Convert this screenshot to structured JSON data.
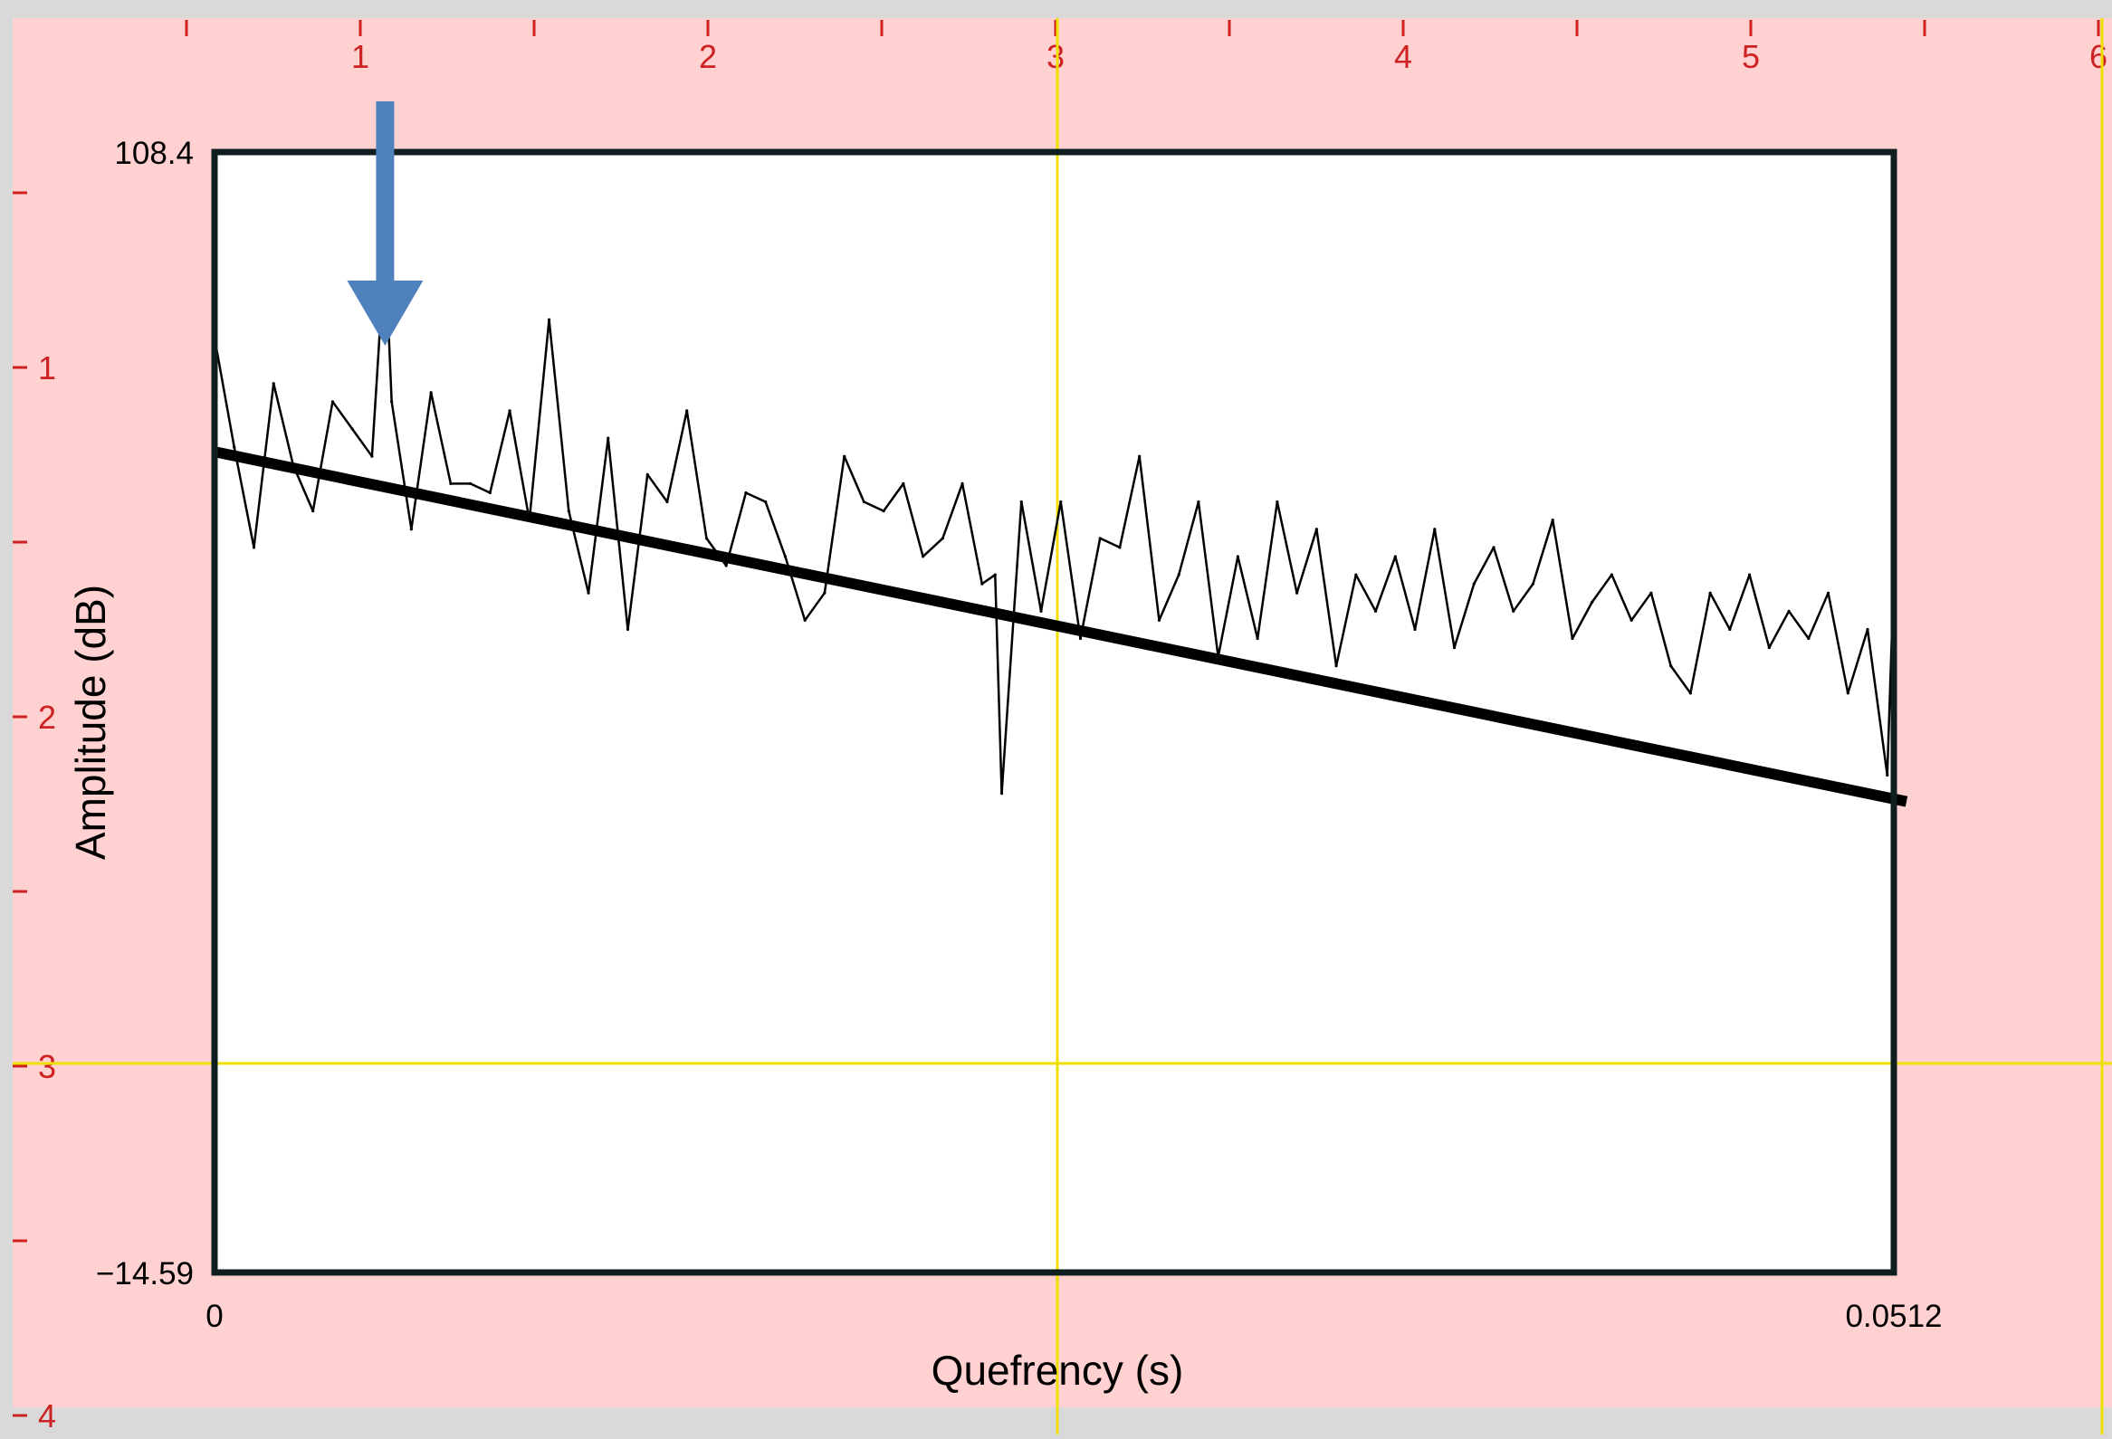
{
  "colors": {
    "canvas_bg": "#ffd1d1",
    "plot_bg": "#ffffff",
    "ruler_tick": "#cc2222",
    "guide_line": "#f0e000",
    "trace": "#000000",
    "trend_line": "#000000",
    "arrow": "#4f81bd",
    "frame": "#0f1f1f"
  },
  "ruler": {
    "top_labels": [
      "1",
      "2",
      "3",
      "4",
      "5",
      "6"
    ],
    "left_labels": [
      "1",
      "2",
      "3",
      "4"
    ]
  },
  "chart_data": {
    "type": "line",
    "title": "",
    "xlabel": "Quefrency (s)",
    "ylabel": "Amplitude (dB)",
    "xlim": [
      0,
      0.0512
    ],
    "ylim": [
      -14.59,
      108.4
    ],
    "x_tick_labels": [
      "0",
      "0.0512"
    ],
    "y_tick_labels": [
      "108.4",
      "−14.59"
    ],
    "series": [
      {
        "x": [
          0.0,
          0.0006,
          0.0012,
          0.0018,
          0.0024,
          0.003,
          0.0036,
          0.0042,
          0.0048,
          0.0052,
          0.0054,
          0.006,
          0.0066,
          0.0072,
          0.0078,
          0.0084,
          0.009,
          0.0096,
          0.0102,
          0.0108,
          0.0114,
          0.012,
          0.0126,
          0.0132,
          0.0138,
          0.0144,
          0.015,
          0.0156,
          0.0162,
          0.0168,
          0.0174,
          0.018,
          0.0186,
          0.0192,
          0.0198,
          0.0204,
          0.021,
          0.0216,
          0.0222,
          0.0228,
          0.0234,
          0.0238,
          0.024,
          0.0246,
          0.0252,
          0.0258,
          0.0264,
          0.027,
          0.0276,
          0.0282,
          0.0288,
          0.0294,
          0.03,
          0.0306,
          0.0312,
          0.0318,
          0.0324,
          0.033,
          0.0336,
          0.0342,
          0.0348,
          0.0354,
          0.036,
          0.0366,
          0.0372,
          0.0378,
          0.0384,
          0.039,
          0.0396,
          0.0402,
          0.0408,
          0.0414,
          0.042,
          0.0426,
          0.0432,
          0.0438,
          0.0444,
          0.045,
          0.0456,
          0.0462,
          0.0468,
          0.0474,
          0.048,
          0.0486,
          0.0492,
          0.0498,
          0.0504,
          0.051,
          0.0512
        ],
        "y": [
          88,
          76,
          65,
          83,
          74,
          69,
          81,
          78,
          75,
          98,
          81,
          67,
          82,
          72,
          72,
          71,
          80,
          68,
          90,
          69,
          60,
          77,
          56,
          73,
          70,
          80,
          66,
          63,
          71,
          70,
          64,
          57,
          60,
          75,
          70,
          69,
          72,
          64,
          66,
          72,
          61,
          62,
          38,
          70,
          58,
          70,
          55,
          66,
          65,
          75,
          57,
          62,
          70,
          53,
          64,
          55,
          70,
          60,
          67,
          52,
          62,
          58,
          64,
          56,
          67,
          54,
          61,
          65,
          58,
          61,
          68,
          55,
          59,
          62,
          57,
          60,
          52,
          49,
          60,
          56,
          62,
          54,
          58,
          55,
          60,
          49,
          56,
          40,
          62
        ]
      },
      {
        "name": "",
        "x": [
          0,
          0.0512
        ],
        "y": [
          75.5,
          37.5
        ]
      }
    ],
    "grid": false,
    "annotations": [
      "arrow pointing at peak near x=0.0052"
    ]
  }
}
